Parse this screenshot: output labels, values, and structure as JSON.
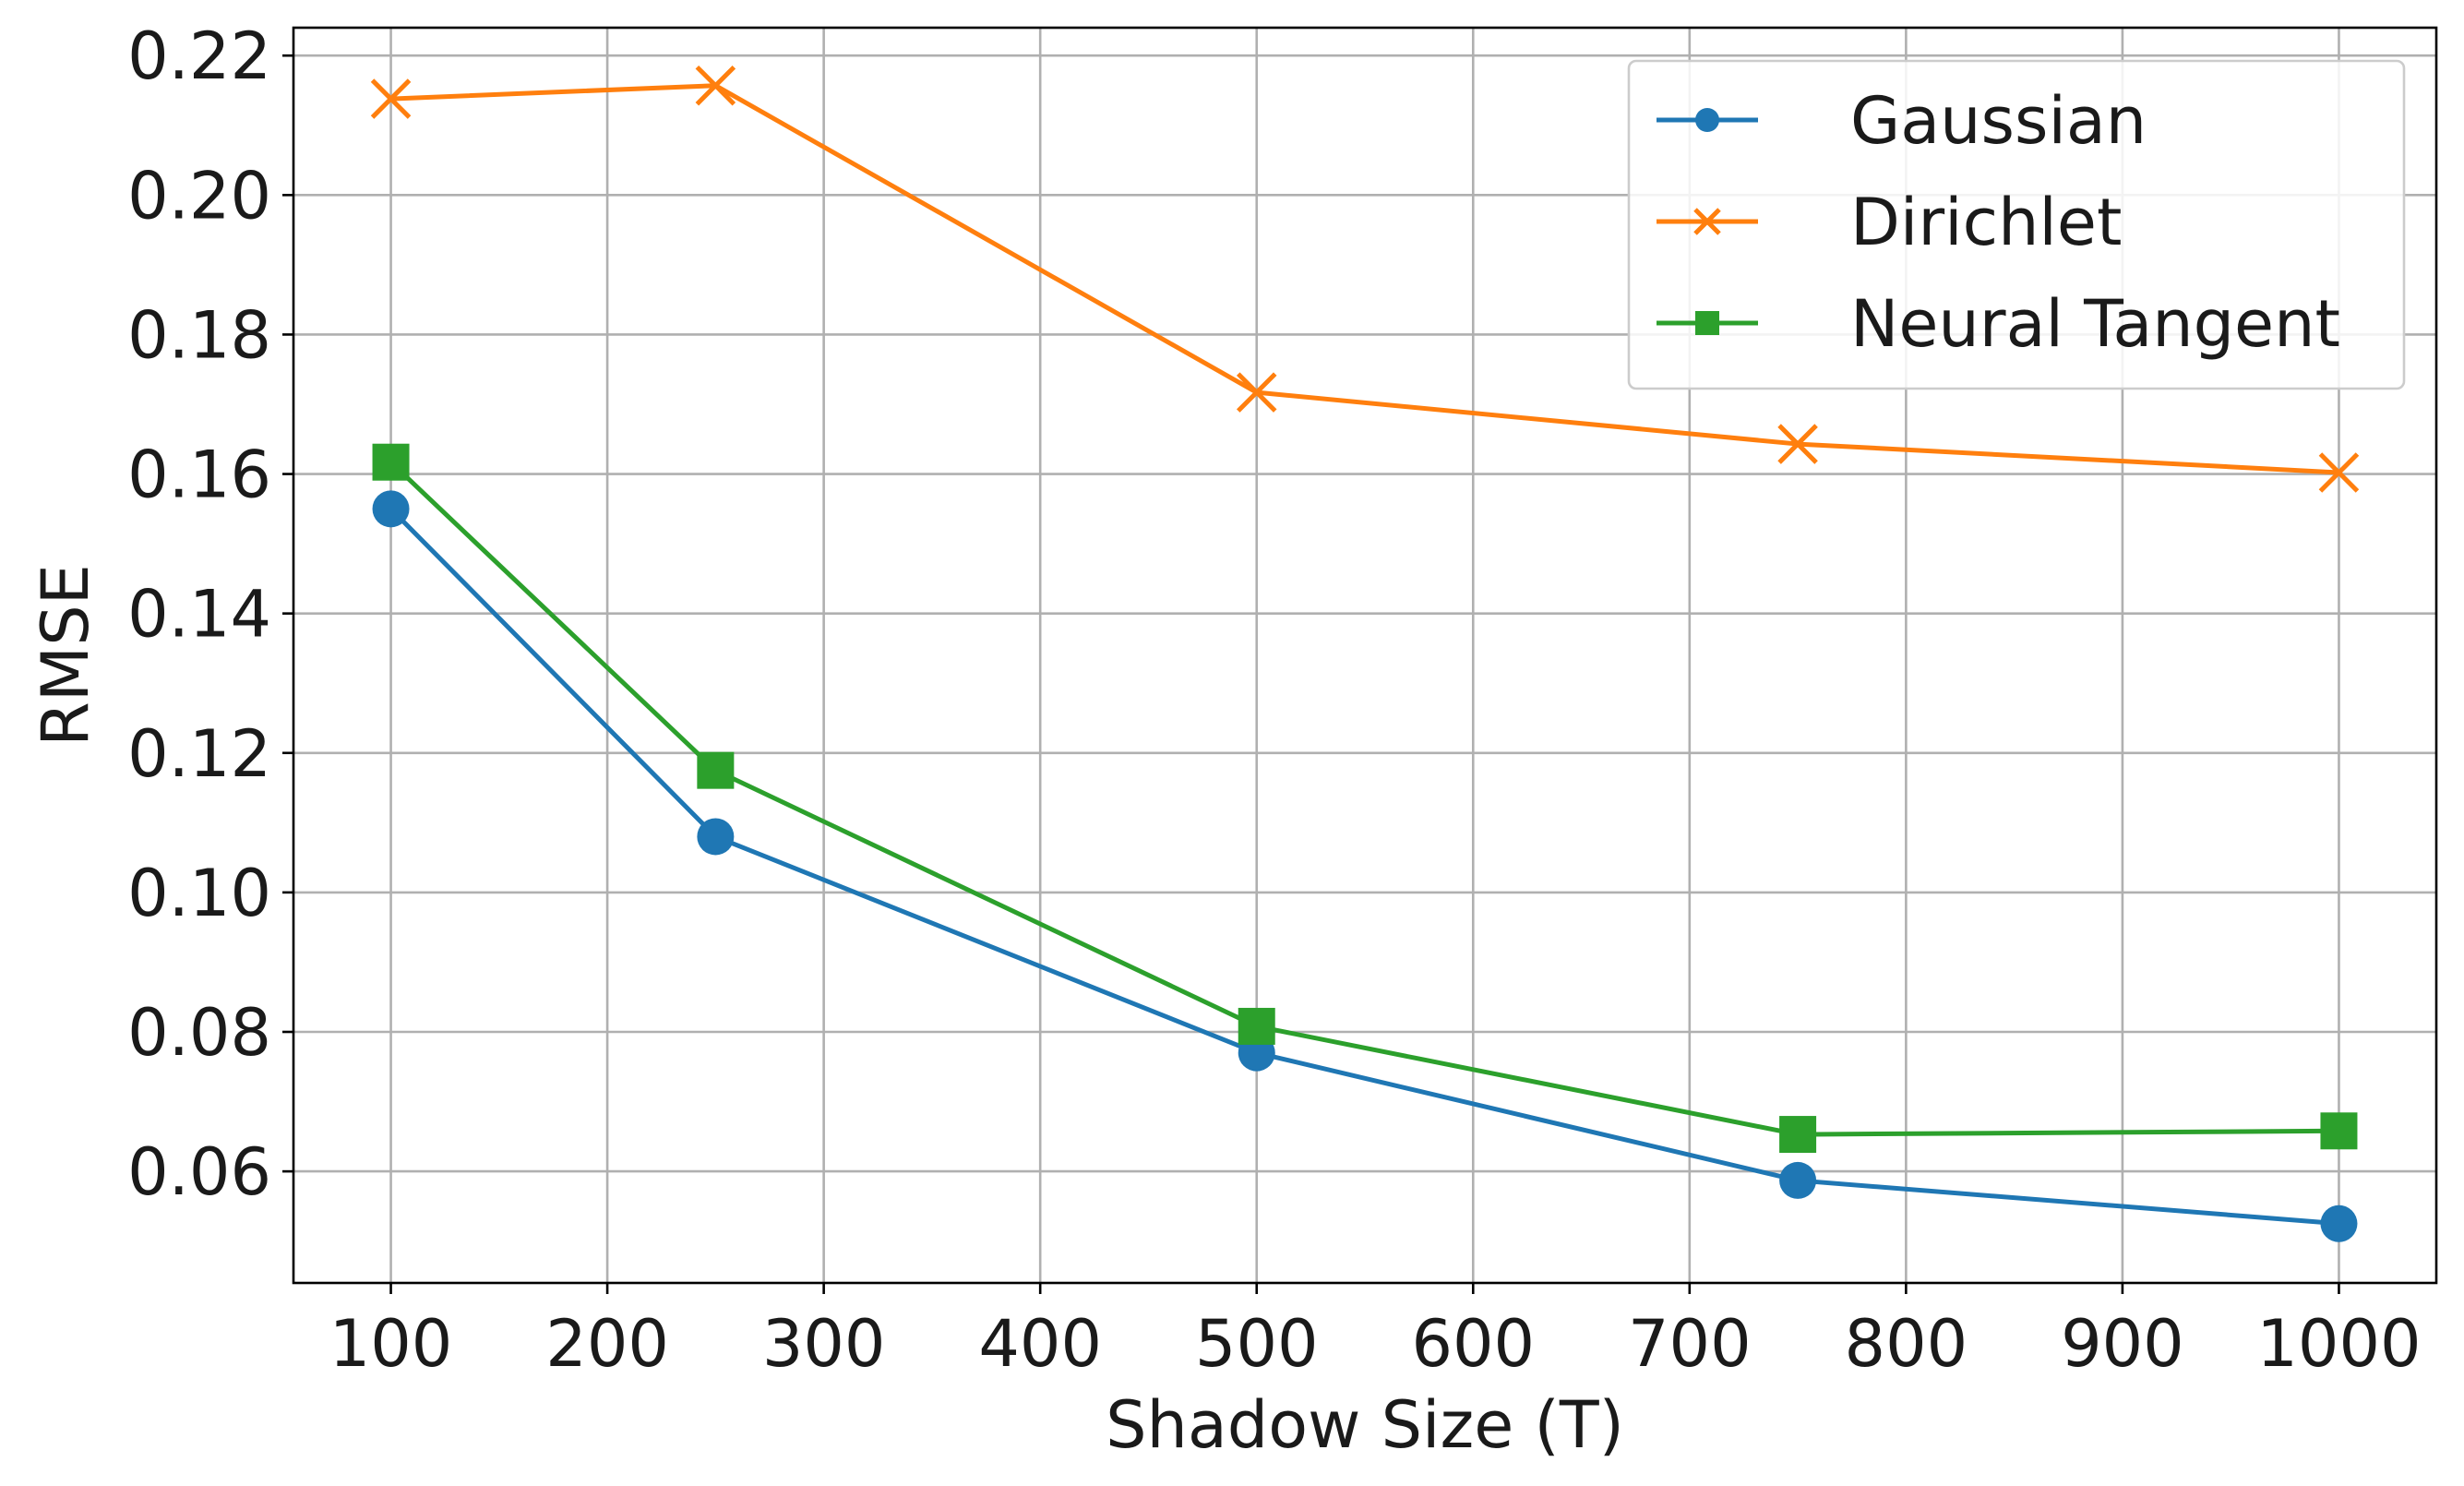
{
  "chart_data": {
    "type": "line",
    "title": "",
    "xlabel": "Shadow Size (T)",
    "ylabel": "RMSE",
    "xlim": [
      55,
      1045
    ],
    "ylim": [
      0.044,
      0.224
    ],
    "xticks": [
      100,
      200,
      300,
      400,
      500,
      600,
      700,
      800,
      900,
      1000
    ],
    "xtick_labels": [
      "100",
      "200",
      "300",
      "400",
      "500",
      "600",
      "700",
      "800",
      "900",
      "1000"
    ],
    "yticks": [
      0.06,
      0.08,
      0.1,
      0.12,
      0.14,
      0.16,
      0.18,
      0.2,
      0.22
    ],
    "ytick_labels": [
      "0.06",
      "0.08",
      "0.10",
      "0.12",
      "0.14",
      "0.16",
      "0.18",
      "0.20",
      "0.22"
    ],
    "grid": true,
    "legend_position": "top-right",
    "x": [
      100,
      250,
      500,
      750,
      1000
    ],
    "series": [
      {
        "name": "Gaussian",
        "color": "#1f77b4",
        "marker": "circle",
        "values": [
          0.155,
          0.108,
          0.077,
          0.0587,
          0.0525
        ]
      },
      {
        "name": "Dirichlet",
        "color": "#ff7f0e",
        "marker": "x",
        "values": [
          0.2138,
          0.2157,
          0.1717,
          0.1643,
          0.1602
        ]
      },
      {
        "name": "Neural Tangent",
        "color": "#2ca02c",
        "marker": "square",
        "values": [
          0.1617,
          0.1175,
          0.0808,
          0.0653,
          0.0658
        ]
      }
    ]
  }
}
